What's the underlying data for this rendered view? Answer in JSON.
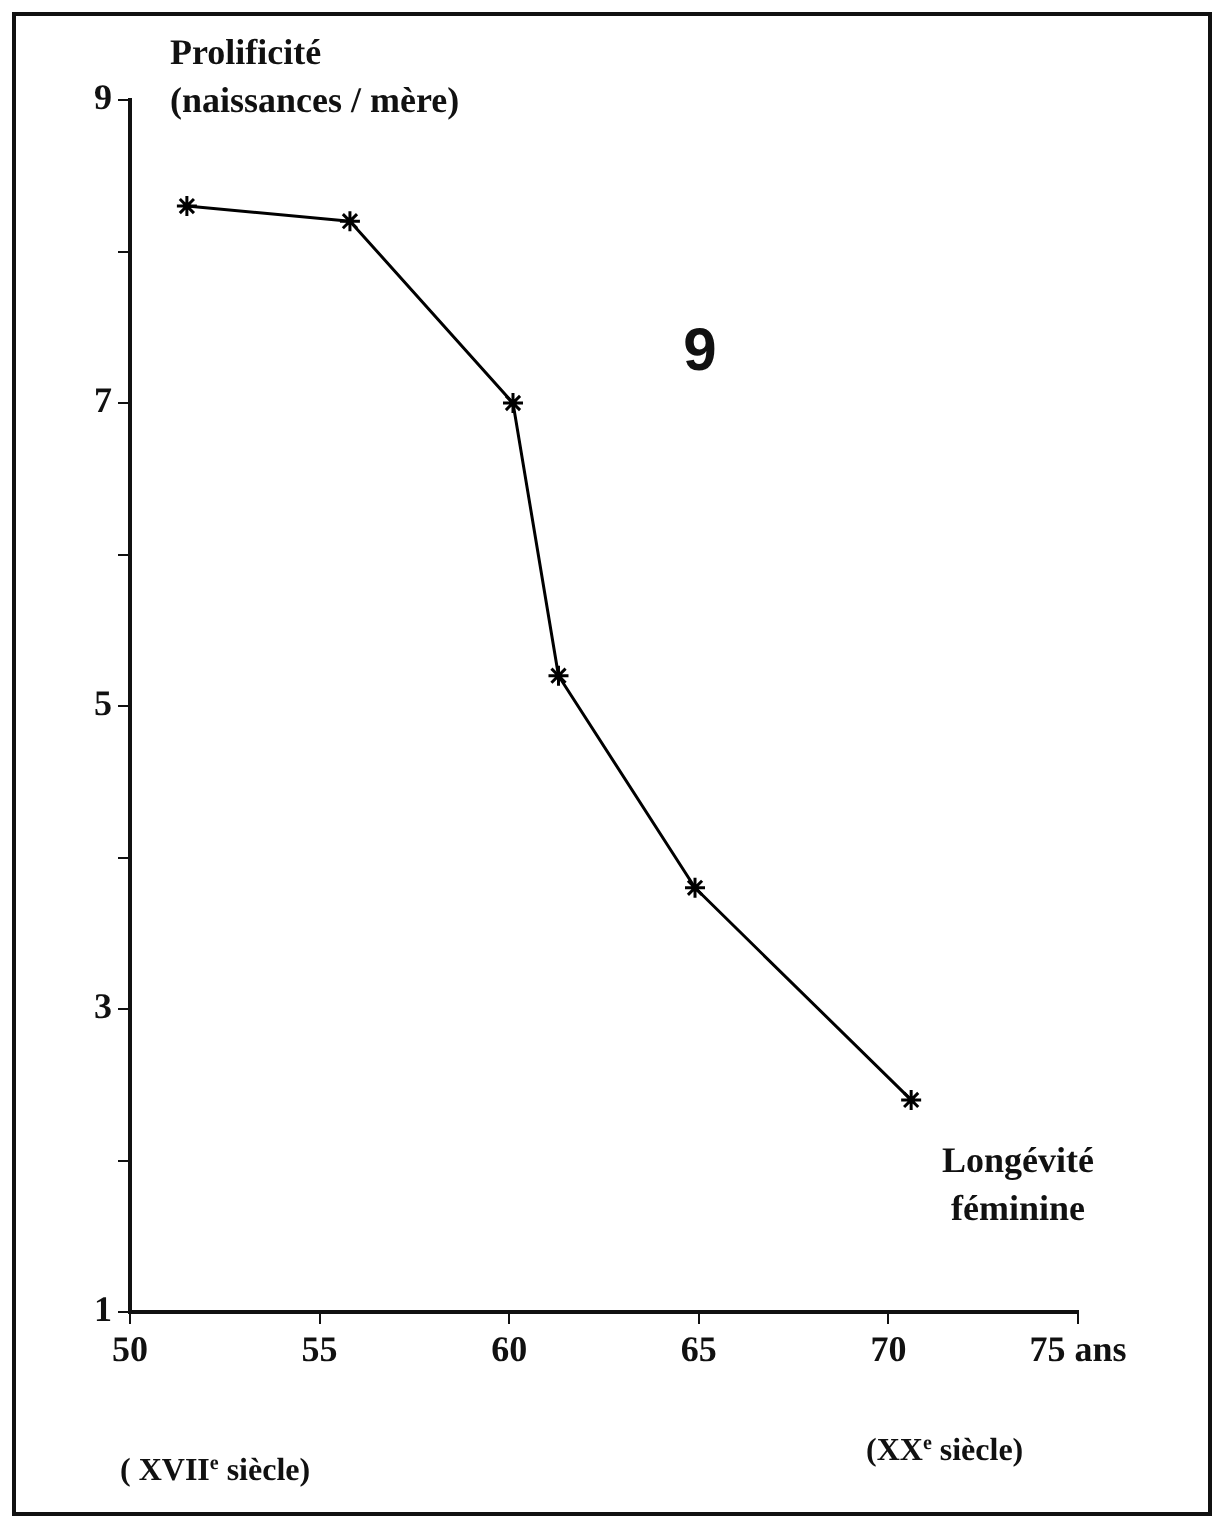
{
  "chart_data": {
    "type": "line",
    "title": "9",
    "xlabel": "Longévité\nféminine",
    "ylabel": "Prolificité\n(naissances / mère)",
    "x": [
      51.5,
      55.8,
      60.1,
      61.3,
      64.9,
      70.6
    ],
    "series": [
      {
        "color": "#000000",
        "values": [
          8.3,
          8.2,
          7.0,
          5.2,
          3.8,
          2.4
        ]
      }
    ],
    "xlim": [
      50,
      75
    ],
    "xticks": [
      50,
      55,
      60,
      65,
      70,
      {
        "value": 75,
        "label": "75 ans"
      }
    ],
    "ylim": [
      1,
      9
    ],
    "yticks": [
      1,
      {
        "value": 2,
        "label": null
      },
      3,
      {
        "value": 4,
        "label": null
      },
      5,
      {
        "value": 6,
        "label": null
      },
      7,
      {
        "value": 8,
        "label": null
      },
      9
    ],
    "annotations": [
      "( XVII$^{e}$ siècle)",
      "(XX$^{e}$ siècle)"
    ],
    "grid": false,
    "legend": false,
    "marker": "cross",
    "line_style": "solid"
  }
}
